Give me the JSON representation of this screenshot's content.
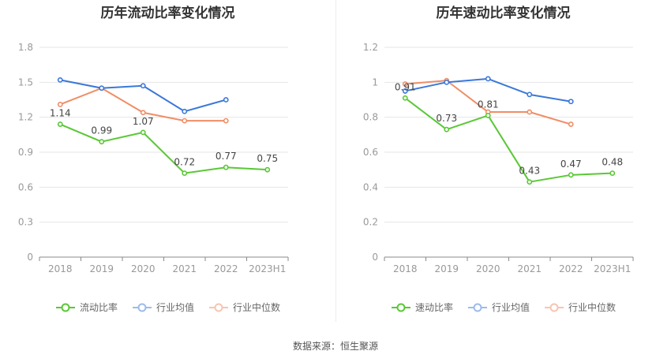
{
  "source": "数据来源：恒生聚源",
  "colors": {
    "main": "#5ac836",
    "avg": "#3b78d8",
    "median": "#f08d66",
    "grid": "#e6e6e6",
    "axis": "#888888",
    "tick": "#999999"
  },
  "chart_data": [
    {
      "type": "line",
      "title": "历年流动比率变化情况",
      "categories": [
        "2018",
        "2019",
        "2020",
        "2021",
        "2022",
        "2023H1"
      ],
      "ylim": [
        0,
        1.8
      ],
      "yticks": [
        "0",
        "0.3",
        "0.6",
        "0.9",
        "1.2",
        "1.5",
        "1.8"
      ],
      "grid": true,
      "legend_position": "bottom",
      "series": [
        {
          "name": "流动比率",
          "values": [
            1.14,
            0.99,
            1.07,
            0.72,
            0.77,
            0.75
          ],
          "labels": [
            "1.14",
            "0.99",
            "1.07",
            "0.72",
            "0.77",
            "0.75"
          ],
          "color": "#5ac836"
        },
        {
          "name": "行业均值",
          "values": [
            1.52,
            1.45,
            1.47,
            1.25,
            1.35,
            null
          ],
          "color": "#3b78d8"
        },
        {
          "name": "行业中位数",
          "values": [
            1.31,
            1.45,
            1.24,
            1.17,
            1.17,
            null
          ],
          "color": "#f08d66"
        }
      ]
    },
    {
      "type": "line",
      "title": "历年速动比率变化情况",
      "categories": [
        "2018",
        "2019",
        "2020",
        "2021",
        "2022",
        "2023H1"
      ],
      "ylim": [
        0,
        1.2
      ],
      "yticks": [
        "0",
        "0.2",
        "0.4",
        "0.6",
        "0.8",
        "1",
        "1.2"
      ],
      "grid": true,
      "legend_position": "bottom",
      "series": [
        {
          "name": "速动比率",
          "values": [
            0.91,
            0.73,
            0.81,
            0.43,
            0.47,
            0.48
          ],
          "labels": [
            "0.91",
            "0.73",
            "0.81",
            "0.43",
            "0.47",
            "0.48"
          ],
          "color": "#5ac836"
        },
        {
          "name": "行业均值",
          "values": [
            0.95,
            1.0,
            1.02,
            0.93,
            0.89,
            null
          ],
          "color": "#3b78d8"
        },
        {
          "name": "行业中位数",
          "values": [
            0.99,
            1.01,
            0.83,
            0.83,
            0.76,
            null
          ],
          "color": "#f08d66"
        }
      ]
    }
  ]
}
